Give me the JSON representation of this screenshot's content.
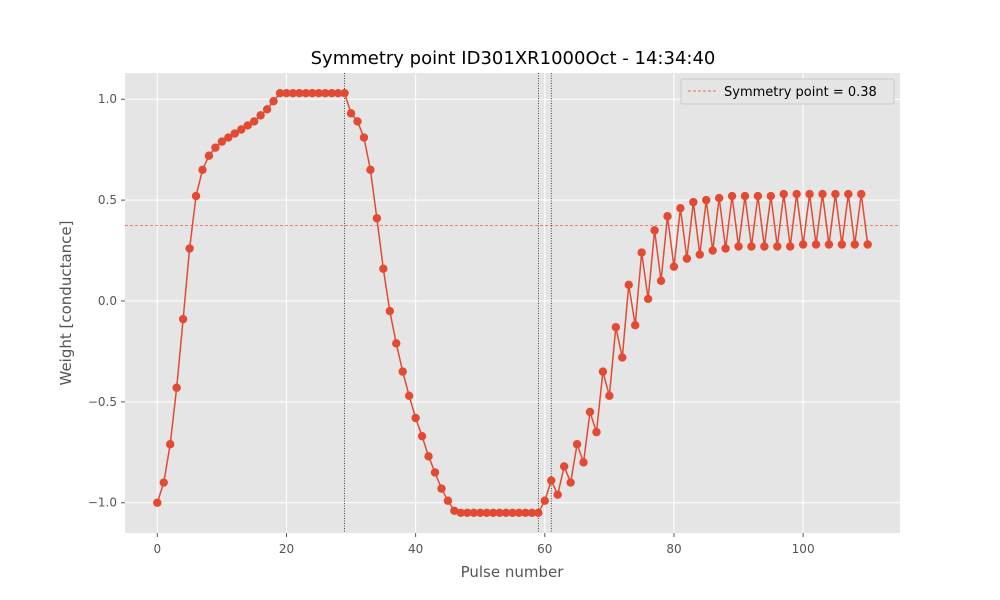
{
  "chart_data": {
    "type": "line",
    "title": "Symmetry point ID301XR1000Oct - 14:34:40",
    "xlabel": "Pulse number",
    "ylabel": "Weight [conductance]",
    "xlim": [
      -5,
      115
    ],
    "ylim": [
      -1.15,
      1.13
    ],
    "x_ticks": [
      0,
      20,
      40,
      60,
      80,
      100
    ],
    "x_tick_labels": [
      "0",
      "20",
      "40",
      "60",
      "80",
      "100"
    ],
    "y_ticks": [
      1.0,
      0.5,
      0.0,
      -0.5,
      -1.0
    ],
    "y_tick_labels": [
      "1.0",
      "0.5",
      "0.0",
      "−0.5",
      "−1.0"
    ],
    "grid": true,
    "style": "ggplot",
    "legend_position": "top-right",
    "series": [
      {
        "name": "",
        "color": "#E24A33",
        "x": [
          0,
          1,
          2,
          3,
          4,
          5,
          6,
          7,
          8,
          9,
          10,
          11,
          12,
          13,
          14,
          15,
          16,
          17,
          18,
          19,
          20,
          21,
          22,
          23,
          24,
          25,
          26,
          27,
          28,
          29,
          30,
          31,
          32,
          33,
          34,
          35,
          36,
          37,
          38,
          39,
          40,
          41,
          42,
          43,
          44,
          45,
          46,
          47,
          48,
          49,
          50,
          51,
          52,
          53,
          54,
          55,
          56,
          57,
          58,
          59,
          60,
          61,
          62,
          63,
          64,
          65,
          66,
          67,
          68,
          69,
          70,
          71,
          72,
          73,
          74,
          75,
          76,
          77,
          78,
          79,
          80,
          81,
          82,
          83,
          84,
          85,
          86,
          87,
          88,
          89,
          90,
          91,
          92,
          93,
          94,
          95,
          96,
          97,
          98,
          99,
          100,
          101,
          102,
          103,
          104,
          105,
          106,
          107,
          108,
          109,
          110
        ],
        "y": [
          -1.0,
          -0.9,
          -0.71,
          -0.43,
          -0.09,
          0.26,
          0.52,
          0.65,
          0.72,
          0.76,
          0.79,
          0.81,
          0.83,
          0.85,
          0.87,
          0.89,
          0.92,
          0.95,
          0.99,
          1.03,
          1.03,
          1.03,
          1.03,
          1.03,
          1.03,
          1.03,
          1.03,
          1.03,
          1.03,
          1.03,
          0.93,
          0.89,
          0.81,
          0.65,
          0.41,
          0.16,
          -0.05,
          -0.21,
          -0.35,
          -0.47,
          -0.58,
          -0.67,
          -0.77,
          -0.85,
          -0.93,
          -0.99,
          -1.04,
          -1.05,
          -1.05,
          -1.05,
          -1.05,
          -1.05,
          -1.05,
          -1.05,
          -1.05,
          -1.05,
          -1.05,
          -1.05,
          -1.05,
          -1.05,
          -0.99,
          -0.89,
          -0.96,
          -0.82,
          -0.9,
          -0.71,
          -0.8,
          -0.55,
          -0.65,
          -0.35,
          -0.47,
          -0.13,
          -0.28,
          0.08,
          -0.12,
          0.24,
          0.01,
          0.35,
          0.1,
          0.42,
          0.17,
          0.46,
          0.21,
          0.49,
          0.23,
          0.5,
          0.25,
          0.51,
          0.26,
          0.52,
          0.27,
          0.52,
          0.27,
          0.52,
          0.27,
          0.52,
          0.27,
          0.53,
          0.27,
          0.53,
          0.28,
          0.53,
          0.28,
          0.53,
          0.28,
          0.53,
          0.28,
          0.53,
          0.28,
          0.53,
          0.28
        ]
      }
    ],
    "hlines": [
      {
        "y": 0.375,
        "color": "#E24A33",
        "style": "dashed",
        "label": "Symmetry point = 0.38"
      }
    ],
    "vlines": [
      {
        "x": 29,
        "color": "#000000",
        "style": "dotted"
      },
      {
        "x": 59,
        "color": "#000000",
        "style": "dotted"
      },
      {
        "x": 61,
        "color": "#000000",
        "style": "dotted"
      }
    ],
    "legend": [
      {
        "label": "Symmetry point = 0.38",
        "color": "#E24A33",
        "style": "dashed"
      }
    ]
  }
}
